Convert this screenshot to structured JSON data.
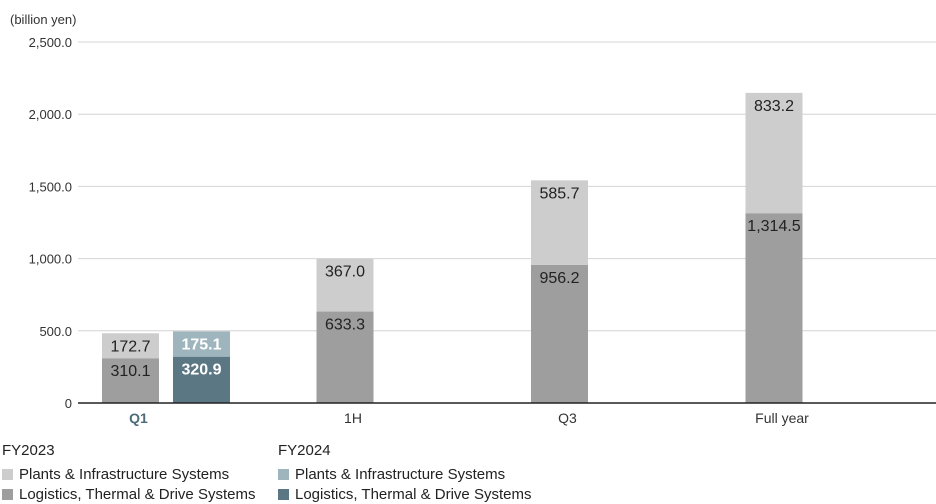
{
  "chart_data": {
    "type": "bar",
    "unit_label": "(billion yen)",
    "categories": [
      "Q1",
      "1H",
      "Q3",
      "Full year"
    ],
    "ylim": [
      0,
      2500
    ],
    "yticks": [
      {
        "value": 0,
        "label": "0"
      },
      {
        "value": 500,
        "label": "500.0"
      },
      {
        "value": 1000,
        "label": "1,000.0"
      },
      {
        "value": 1500,
        "label": "1,500.0"
      },
      {
        "value": 2000,
        "label": "2,000.0"
      },
      {
        "value": 2500,
        "label": "2,500.0"
      }
    ],
    "grid": true,
    "highlight_category": "Q1",
    "series": [
      {
        "group": "FY2023",
        "name": "Logistics, Thermal & Drive Systems",
        "color": "#9e9e9e",
        "values": [
          310.1,
          633.3,
          956.2,
          1314.5
        ],
        "labels": [
          "310.1",
          "633.3",
          "956.2",
          "1,314.5"
        ]
      },
      {
        "group": "FY2023",
        "name": "Plants & Infrastructure Systems",
        "color": "#cdcdcd",
        "values": [
          172.7,
          367.0,
          585.7,
          833.2
        ],
        "labels": [
          "172.7",
          "367.0",
          "585.7",
          "833.2"
        ]
      },
      {
        "group": "FY2024",
        "name": "Logistics, Thermal & Drive Systems",
        "color": "#5c7784",
        "values": [
          320.9,
          null,
          null,
          null
        ],
        "labels": [
          "320.9",
          "",
          "",
          ""
        ]
      },
      {
        "group": "FY2024",
        "name": "Plants & Infrastructure Systems",
        "color": "#9fb5bd",
        "values": [
          175.1,
          null,
          null,
          null
        ],
        "labels": [
          "175.1",
          "",
          "",
          ""
        ]
      }
    ],
    "legend": [
      {
        "title": "FY2023",
        "items": [
          {
            "label": "Plants & Infrastructure Systems",
            "color": "#cdcdcd"
          },
          {
            "label": "Logistics, Thermal & Drive Systems",
            "color": "#9e9e9e"
          }
        ]
      },
      {
        "title": "FY2024",
        "items": [
          {
            "label": "Plants & Infrastructure Systems",
            "color": "#9fb5bd"
          },
          {
            "label": "Logistics, Thermal & Drive Systems",
            "color": "#5c7784"
          }
        ]
      }
    ],
    "legend_placement": "bottom-left"
  }
}
